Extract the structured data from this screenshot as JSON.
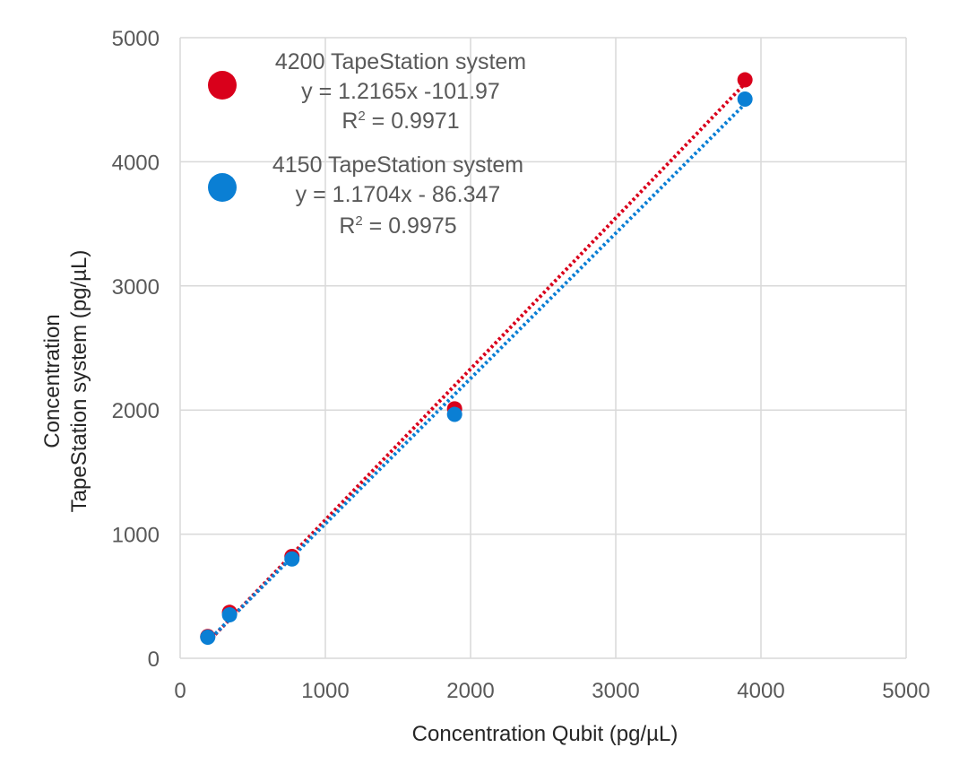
{
  "chart_data": {
    "type": "scatter",
    "title": "",
    "xlabel": "Concentration Qubit (pg/µL)",
    "ylabel_lines": [
      "Concentration",
      "TapeStation system (pg/µL)"
    ],
    "xlim": [
      0,
      5000
    ],
    "ylim": [
      0,
      5000
    ],
    "x_ticks": [
      0,
      1000,
      2000,
      3000,
      4000,
      5000
    ],
    "y_ticks": [
      0,
      1000,
      2000,
      3000,
      4000,
      5000
    ],
    "x_tick_labels": [
      "0",
      "1000",
      "2000",
      "3000",
      "4000",
      "5000"
    ],
    "y_tick_labels": [
      "0",
      "1000",
      "2000",
      "3000",
      "4000",
      "5000"
    ],
    "grid": true,
    "legend_placement": "top-left",
    "series": [
      {
        "name": "4200 TapeStation system",
        "color": "#d9001b",
        "x": [
          190,
          340,
          770,
          1890,
          3890
        ],
        "y": [
          175,
          370,
          820,
          2010,
          4660
        ],
        "trendline": {
          "type": "linear",
          "slope": 1.2165,
          "intercept": -101.97,
          "x_range": [
            190,
            3890
          ],
          "style": "dotted"
        },
        "equation_label": "y = 1.2165x -101.97",
        "r2_prefix": "R",
        "r2_sup": "2",
        "r2_value": " = 0.9971"
      },
      {
        "name": "4150 TapeStation system",
        "color": "#0a7fd4",
        "x": [
          190,
          340,
          770,
          1890,
          3890
        ],
        "y": [
          170,
          350,
          800,
          1965,
          4505
        ],
        "trendline": {
          "type": "linear",
          "slope": 1.1704,
          "intercept": -86.347,
          "x_range": [
            190,
            3890
          ],
          "style": "dotted"
        },
        "equation_label": "y = 1.1704x - 86.347",
        "r2_prefix": "R",
        "r2_sup": "2",
        "r2_value": " = 0.9975"
      }
    ]
  }
}
